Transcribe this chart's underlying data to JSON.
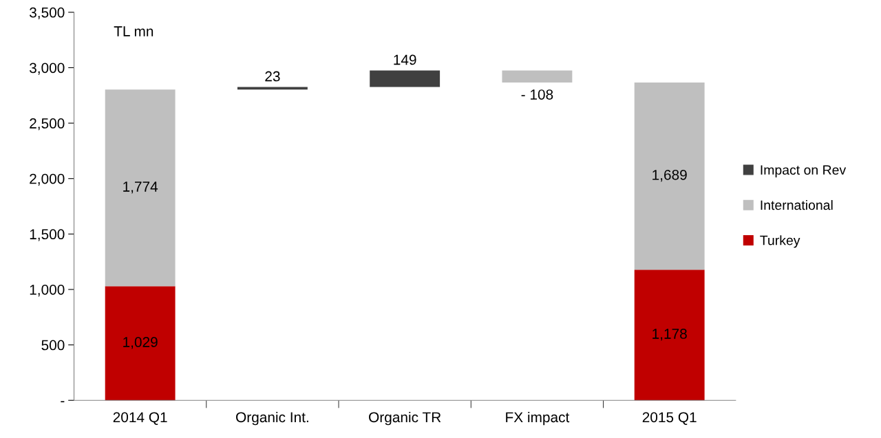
{
  "chart_data": {
    "type": "bar",
    "stacked": true,
    "categories": [
      "2014 Q1",
      "Organic Int.",
      "Organic TR",
      "FX impact",
      "2015 Q1"
    ],
    "series": [
      {
        "name": "Turkey",
        "color": "#c00000",
        "values": [
          1029,
          null,
          null,
          null,
          1178
        ],
        "value_labels": [
          "1,029",
          null,
          null,
          null,
          "1,178"
        ]
      },
      {
        "name": "International",
        "color": "#bfbfbf",
        "values": [
          1774,
          null,
          null,
          null,
          1689
        ],
        "value_labels": [
          "1,774",
          null,
          null,
          null,
          "1,689"
        ]
      },
      {
        "name": "Impact on Rev",
        "color": "#404040",
        "colors": [
          "#404040",
          "#404040",
          "#404040",
          "#bfbfbf",
          "#404040"
        ],
        "base": [
          null,
          2803,
          2826,
          2975,
          null
        ],
        "values": [
          null,
          23,
          149,
          -108,
          null
        ],
        "value_labels": [
          null,
          "23",
          "149",
          "- 108",
          null
        ]
      }
    ],
    "ylim": [
      0,
      3500
    ],
    "yticks": [
      {
        "value": 0,
        "label": "-"
      },
      {
        "value": 500,
        "label": "500"
      },
      {
        "value": 1000,
        "label": "1,000"
      },
      {
        "value": 1500,
        "label": "1,500"
      },
      {
        "value": 2000,
        "label": "2,000"
      },
      {
        "value": 2500,
        "label": "2,500"
      },
      {
        "value": 3000,
        "label": "3,000"
      },
      {
        "value": 3500,
        "label": "3,500"
      }
    ],
    "annotations": [
      "TL mn"
    ],
    "grid": false,
    "legend": "right"
  }
}
